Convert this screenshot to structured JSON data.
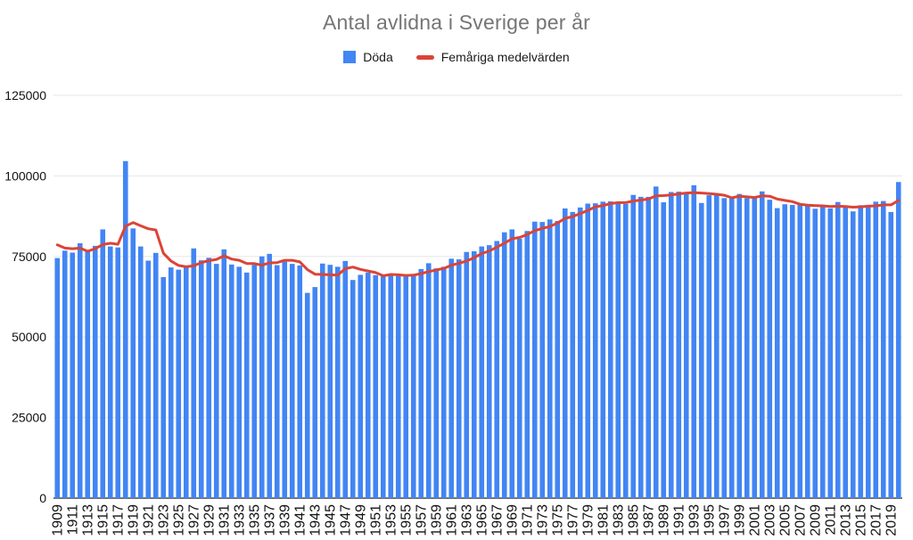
{
  "title": "Antal avlidna i Sverige per år",
  "colors": {
    "bar": "#4285f4",
    "line": "#db4437",
    "title_text": "#757575",
    "legend_text": "#1a1a1a",
    "tick_text": "#111111",
    "gridline": "#e6e6e6",
    "axis_line": "#757575",
    "background": "#ffffff"
  },
  "legend": {
    "items": [
      {
        "label": "Döda",
        "swatch": "square",
        "color": "#4285f4"
      },
      {
        "label": "Femåriga medelvärden",
        "swatch": "dash",
        "color": "#db4437"
      }
    ]
  },
  "chart_data": {
    "type": "bar",
    "title": "Antal avlidna i Sverige per år",
    "xlabel": "",
    "ylabel": "",
    "ylim": [
      0,
      125000
    ],
    "y_ticks": [
      0,
      25000,
      50000,
      75000,
      100000,
      125000
    ],
    "grid": "horizontal",
    "legend_position": "top",
    "x_start_year": 1909,
    "x_end_year": 2020,
    "x_tick_rule": "every odd year labeled, labels rotated 90deg",
    "categories": [
      1909,
      1910,
      1911,
      1912,
      1913,
      1914,
      1915,
      1916,
      1917,
      1918,
      1919,
      1920,
      1921,
      1922,
      1923,
      1924,
      1925,
      1926,
      1927,
      1928,
      1929,
      1930,
      1931,
      1932,
      1933,
      1934,
      1935,
      1936,
      1937,
      1938,
      1939,
      1940,
      1941,
      1942,
      1943,
      1944,
      1945,
      1946,
      1947,
      1948,
      1949,
      1950,
      1951,
      1952,
      1953,
      1954,
      1955,
      1956,
      1957,
      1958,
      1959,
      1960,
      1961,
      1962,
      1963,
      1964,
      1965,
      1966,
      1967,
      1968,
      1969,
      1970,
      1971,
      1972,
      1973,
      1974,
      1975,
      1976,
      1977,
      1978,
      1979,
      1980,
      1981,
      1982,
      1983,
      1984,
      1985,
      1986,
      1987,
      1988,
      1989,
      1990,
      1991,
      1992,
      1993,
      1994,
      1995,
      1996,
      1997,
      1998,
      1999,
      2000,
      2001,
      2002,
      2003,
      2004,
      2005,
      2006,
      2007,
      2008,
      2009,
      2010,
      2011,
      2012,
      2013,
      2014,
      2015,
      2016,
      2017,
      2018,
      2019,
      2020
    ],
    "series": [
      {
        "name": "Döda",
        "type": "bar",
        "color": "#4285f4",
        "values": [
          74500,
          76800,
          76200,
          79100,
          76600,
          78300,
          83400,
          78100,
          77800,
          104600,
          83700,
          78100,
          73700,
          76100,
          68600,
          71600,
          70900,
          71800,
          77500,
          73800,
          74600,
          72700,
          77200,
          72500,
          71800,
          70000,
          72400,
          75000,
          75800,
          72300,
          73400,
          72700,
          72200,
          63700,
          65500,
          72800,
          72400,
          71800,
          73600,
          67700,
          69300,
          70000,
          69200,
          68800,
          69500,
          69000,
          69200,
          69500,
          71100,
          72900,
          71300,
          71800,
          74300,
          74100,
          76400,
          76600,
          78100,
          78500,
          79800,
          82500,
          83400,
          80500,
          82900,
          85800,
          85700,
          86500,
          86000,
          89900,
          88800,
          90200,
          91400,
          91500,
          92000,
          92100,
          91400,
          91300,
          94100,
          93500,
          93500,
          96700,
          91800,
          95000,
          95100,
          94900,
          97100,
          91600,
          94000,
          94100,
          93100,
          93000,
          94400,
          93100,
          93100,
          95200,
          92600,
          90000,
          91200,
          91000,
          91200,
          91000,
          89800,
          90500,
          89900,
          91900,
          90400,
          89000,
          90900,
          91000,
          92000,
          92200,
          88800,
          98100
        ]
      },
      {
        "name": "Femåriga medelvärden",
        "type": "line",
        "color": "#db4437",
        "values": [
          78600,
          77600,
          77400,
          77600,
          76600,
          77400,
          78700,
          79100,
          78800,
          84400,
          85500,
          84500,
          83600,
          83200,
          76000,
          73600,
          72200,
          71800,
          72100,
          73100,
          73700,
          74100,
          75200,
          74200,
          73800,
          72800,
          72800,
          72300,
          73000,
          73100,
          73800,
          73800,
          73300,
          70900,
          69500,
          69400,
          69300,
          69200,
          71200,
          71700,
          71000,
          70500,
          70000,
          69000,
          69400,
          69300,
          69100,
          69200,
          69700,
          70300,
          70800,
          71300,
          72300,
          72900,
          73600,
          74600,
          75900,
          76700,
          77900,
          79100,
          80500,
          80900,
          81800,
          83000,
          83700,
          84300,
          85400,
          86800,
          87400,
          88300,
          89300,
          90400,
          90800,
          91400,
          91700,
          91700,
          92200,
          92500,
          92800,
          93800,
          93900,
          94100,
          94400,
          94700,
          94800,
          94700,
          94500,
          94300,
          94000,
          93200,
          93700,
          93500,
          93300,
          93800,
          93700,
          92800,
          92400,
          92000,
          91200,
          90900,
          90800,
          90700,
          90500,
          90600,
          90500,
          90300,
          90400,
          90600,
          90700,
          91000,
          91000,
          92400
        ]
      }
    ]
  }
}
